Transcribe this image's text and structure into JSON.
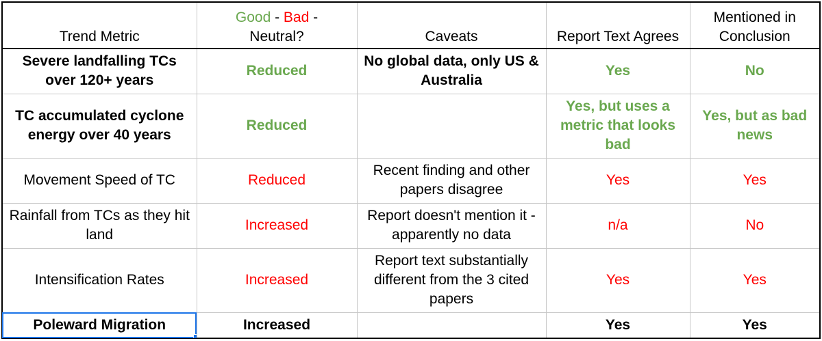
{
  "header": {
    "trend_metric": "Trend Metric",
    "good": "Good",
    "sep1": " - ",
    "bad": "Bad",
    "sep2": " -",
    "neutral": "Neutral?",
    "caveats": "Caveats",
    "report_agrees": "Report Text Agrees",
    "mentioned_line1": "Mentioned in",
    "mentioned_line2": "Conclusion"
  },
  "rows": [
    {
      "metric": "Severe landfalling TCs over 120+ years",
      "verdict": "Reduced",
      "caveats": "No global data, only US & Australia",
      "agrees": "Yes",
      "conclusion": "No"
    },
    {
      "metric": "TC accumulated cyclone energy over 40 years",
      "verdict": "Reduced",
      "caveats": "",
      "agrees": "Yes, but uses a metric that looks bad",
      "conclusion": "Yes, but as bad news"
    },
    {
      "metric": "Movement Speed of TC",
      "verdict": "Reduced",
      "caveats": "Recent finding and other papers disagree",
      "agrees": "Yes",
      "conclusion": "Yes"
    },
    {
      "metric": "Rainfall from TCs as they hit land",
      "verdict": "Increased",
      "caveats": "Report doesn't mention it - apparently no data",
      "agrees": "n/a",
      "conclusion": "No"
    },
    {
      "metric": "Intensification Rates",
      "verdict": "Increased",
      "caveats": "Report text substantially different from the 3 cited papers",
      "agrees": "Yes",
      "conclusion": "Yes"
    },
    {
      "metric": "Poleward Migration",
      "verdict": "Increased",
      "caveats": "",
      "agrees": "Yes",
      "conclusion": "Yes"
    }
  ],
  "colors": {
    "good": "#6aa84f",
    "bad": "#ff0000",
    "neutral": "#000000",
    "selection": "#1a73e8"
  }
}
